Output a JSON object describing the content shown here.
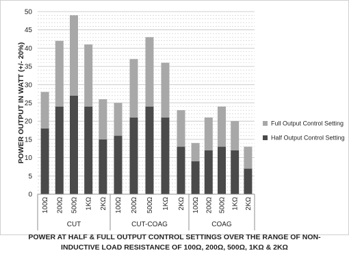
{
  "chart_data": {
    "type": "bar",
    "stacked": true,
    "groups": [
      {
        "name": "CUT",
        "categories": [
          "100Ω",
          "200Ω",
          "500Ω",
          "1KΩ",
          "2KΩ"
        ]
      },
      {
        "name": "CUT-COAG",
        "categories": [
          "100Ω",
          "200Ω",
          "500Ω",
          "1KΩ",
          "2KΩ"
        ]
      },
      {
        "name": "COAG",
        "categories": [
          "100Ω",
          "200Ω",
          "500Ω",
          "1KΩ",
          "2KΩ"
        ]
      }
    ],
    "series": [
      {
        "name": "Half Output Control Setting",
        "color": "#4a4a4a",
        "values": [
          18,
          24,
          27,
          24,
          15,
          16,
          21,
          24,
          21,
          13,
          9,
          12,
          13,
          12,
          7
        ]
      },
      {
        "name": "Full Output Control Setting",
        "color": "#a8a8a8",
        "values": [
          10,
          18,
          22,
          17,
          11,
          9,
          16,
          19,
          15,
          10,
          5,
          9,
          11,
          8,
          6
        ]
      }
    ],
    "ylabel": "POWER OUTPUT IN WATT (+/- 20%)",
    "title_lines": [
      "POWER AT HALF & FULL  OUTPUT CONTROL SETTINGS OVER THE RANGE OF NON-",
      "INDUCTIVE LOAD RESISTANCE OF 100Ω, 200Ω, 500Ω, 1KΩ & 2KΩ"
    ],
    "ylim": [
      0,
      50
    ],
    "yticks": [
      "0",
      "5",
      "10",
      "15",
      "20",
      "25",
      "30",
      "35",
      "40",
      "45",
      "50"
    ],
    "grid": true,
    "legend_position": "right",
    "legend_order": [
      "Full Output Control Setting",
      "Half Output Control Setting"
    ]
  }
}
